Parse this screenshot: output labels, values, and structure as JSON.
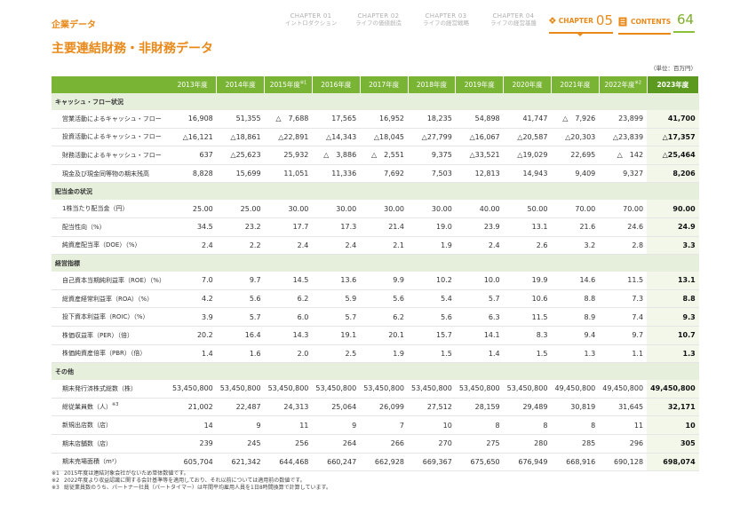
{
  "header": {
    "section": "企業データ",
    "nav": [
      {
        "chapter": "CHAPTER 01",
        "title": "イントロダクション"
      },
      {
        "chapter": "CHAPTER 02",
        "title": "ライフの価値創造"
      },
      {
        "chapter": "CHAPTER 03",
        "title": "ライフの経営戦略"
      },
      {
        "chapter": "CHAPTER 04",
        "title": "ライフの経営基盤"
      }
    ],
    "active_chapter_word": "CHAPTER",
    "active_chapter_num": "05",
    "contents_label": "CONTENTS",
    "page_number": "64",
    "accent_color": "#e8891a",
    "green_color": "#7ab435"
  },
  "title": "主要連結財務・非財務データ",
  "unit": "（単位：百万円）",
  "table": {
    "years": [
      "2013年度",
      "2014年度",
      "2015年度",
      "2016年度",
      "2017年度",
      "2018年度",
      "2019年度",
      "2020年度",
      "2021年度",
      "2022年度",
      "2023年度"
    ],
    "year_notes": [
      "",
      "",
      "※1",
      "",
      "",
      "",
      "",
      "",
      "",
      "※2",
      ""
    ],
    "sections": [
      {
        "title": "キャッシュ・フロー状況",
        "rows": [
          {
            "label": "営業活動によるキャッシュ・フロー",
            "note": "",
            "values": [
              "16,908",
              "51,355",
              "△　7,688",
              "17,565",
              "16,952",
              "18,235",
              "54,898",
              "41,747",
              "△　7,926",
              "23,899",
              "41,700"
            ]
          },
          {
            "label": "投資活動によるキャッシュ・フロー",
            "note": "",
            "values": [
              "△16,121",
              "△18,861",
              "△22,891",
              "△14,343",
              "△18,045",
              "△27,799",
              "△16,067",
              "△20,587",
              "△20,303",
              "△23,839",
              "△17,357"
            ]
          },
          {
            "label": "財務活動によるキャッシュ・フロー",
            "note": "",
            "values": [
              "637",
              "△25,623",
              "25,932",
              "△　3,886",
              "△　2,551",
              "9,375",
              "△33,521",
              "△19,029",
              "22,695",
              "△　142",
              "△25,464"
            ]
          },
          {
            "label": "現金及び現金同等物の期末残高",
            "note": "",
            "values": [
              "8,828",
              "15,699",
              "11,051",
              "11,336",
              "7,692",
              "7,503",
              "12,813",
              "14,943",
              "9,409",
              "9,327",
              "8,206"
            ]
          }
        ]
      },
      {
        "title": "配当金の状況",
        "rows": [
          {
            "label": "1株当たり配当金（円）",
            "note": "",
            "values": [
              "25.00",
              "25.00",
              "30.00",
              "30.00",
              "30.00",
              "30.00",
              "40.00",
              "50.00",
              "70.00",
              "70.00",
              "90.00"
            ]
          },
          {
            "label": "配当性向（%）",
            "note": "",
            "values": [
              "34.5",
              "23.2",
              "17.7",
              "17.3",
              "21.4",
              "19.0",
              "23.9",
              "13.1",
              "21.6",
              "24.6",
              "24.9"
            ]
          },
          {
            "label": "純資産配当率（DOE）（%）",
            "note": "",
            "values": [
              "2.4",
              "2.2",
              "2.4",
              "2.4",
              "2.1",
              "1.9",
              "2.4",
              "2.6",
              "3.2",
              "2.8",
              "3.3"
            ]
          }
        ]
      },
      {
        "title": "経営指標",
        "rows": [
          {
            "label": "自己資本当期純利益率（ROE）（%）",
            "note": "",
            "values": [
              "7.0",
              "9.7",
              "14.5",
              "13.6",
              "9.9",
              "10.2",
              "10.0",
              "19.9",
              "14.6",
              "11.5",
              "13.1"
            ]
          },
          {
            "label": "総資産経常利益率（ROA）（%）",
            "note": "",
            "values": [
              "4.2",
              "5.6",
              "6.2",
              "5.9",
              "5.6",
              "5.4",
              "5.7",
              "10.6",
              "8.8",
              "7.3",
              "8.8"
            ]
          },
          {
            "label": "投下資本利益率（ROIC）（%）",
            "note": "",
            "values": [
              "3.9",
              "5.7",
              "6.0",
              "5.7",
              "6.2",
              "5.6",
              "6.3",
              "11.5",
              "8.9",
              "7.4",
              "9.3"
            ]
          },
          {
            "label": "株価収益率（PER）（倍）",
            "note": "",
            "values": [
              "20.2",
              "16.4",
              "14.3",
              "19.1",
              "20.1",
              "15.7",
              "14.1",
              "8.3",
              "9.4",
              "9.7",
              "10.7"
            ]
          },
          {
            "label": "株価純資産倍率（PBR）（倍）",
            "note": "",
            "values": [
              "1.4",
              "1.6",
              "2.0",
              "2.5",
              "1.9",
              "1.5",
              "1.4",
              "1.5",
              "1.3",
              "1.1",
              "1.3"
            ]
          }
        ]
      },
      {
        "title": "その他",
        "rows": [
          {
            "label": "期末発行済株式総数（株）",
            "note": "",
            "values": [
              "53,450,800",
              "53,450,800",
              "53,450,800",
              "53,450,800",
              "53,450,800",
              "53,450,800",
              "53,450,800",
              "53,450,800",
              "49,450,800",
              "49,450,800",
              "49,450,800"
            ]
          },
          {
            "label": "総従業員数（人）",
            "note": "※3",
            "values": [
              "21,002",
              "22,487",
              "24,313",
              "25,064",
              "26,099",
              "27,512",
              "28,159",
              "29,489",
              "30,819",
              "31,645",
              "32,171"
            ]
          },
          {
            "label": "新規出店数（店）",
            "note": "",
            "values": [
              "14",
              "9",
              "11",
              "9",
              "7",
              "10",
              "8",
              "8",
              "8",
              "11",
              "10"
            ]
          },
          {
            "label": "期末店舗数（店）",
            "note": "",
            "values": [
              "239",
              "245",
              "256",
              "264",
              "266",
              "270",
              "275",
              "280",
              "285",
              "296",
              "305"
            ]
          },
          {
            "label": "期末売場面積（m²）",
            "note": "",
            "values": [
              "605,704",
              "621,342",
              "644,468",
              "660,247",
              "662,928",
              "669,367",
              "675,650",
              "676,949",
              "668,916",
              "690,128",
              "698,074"
            ]
          }
        ]
      }
    ]
  },
  "notes": [
    {
      "mark": "※1",
      "text": "2015年度は連結対象会社がないため単体数値です。"
    },
    {
      "mark": "※2",
      "text": "2022年度より収益認識に関する会計基準等を適用しており、それ以前については適用前の数値です。"
    },
    {
      "mark": "※3",
      "text": "総従業員数のうち、パートナー社員（パートタイマー）は年間平均雇用人員を1日8時間換算で計算しています。"
    }
  ]
}
